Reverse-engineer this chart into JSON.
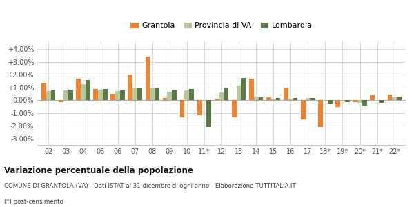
{
  "categories": [
    "02",
    "03",
    "04",
    "05",
    "06",
    "07",
    "08",
    "09",
    "10",
    "11*",
    "12",
    "13",
    "14",
    "15",
    "16",
    "17",
    "18*",
    "19*",
    "20*",
    "21*",
    "22*"
  ],
  "grantola": [
    0.0135,
    -0.0015,
    0.017,
    0.009,
    0.005,
    0.02,
    0.034,
    0.0015,
    -0.0135,
    -0.012,
    0.001,
    -0.0135,
    0.017,
    0.002,
    0.01,
    -0.015,
    -0.021,
    -0.0055,
    -0.0015,
    0.004,
    0.0045
  ],
  "provincia_va": [
    0.007,
    0.0075,
    0.0125,
    0.0075,
    0.007,
    0.01,
    0.01,
    0.0065,
    0.0075,
    -0.001,
    0.006,
    0.0115,
    0.003,
    0.0005,
    0.001,
    0.0015,
    -0.001,
    -0.001,
    -0.0025,
    -0.0005,
    0.0025
  ],
  "lombardia": [
    0.0075,
    0.008,
    0.0155,
    0.0085,
    0.0075,
    0.0095,
    0.01,
    0.008,
    0.0085,
    -0.021,
    0.01,
    0.0175,
    0.0025,
    0.0015,
    0.0015,
    0.0015,
    -0.003,
    -0.0015,
    -0.004,
    -0.002,
    0.003
  ],
  "color_grantola": "#f0822d",
  "color_provincia": "#b5c99a",
  "color_lombardia": "#5a7a4a",
  "title": "Variazione percentuale della popolazione",
  "subtitle": "COMUNE DI GRANTOLA (VA) - Dati ISTAT al 31 dicembre di ogni anno - Elaborazione TUTTITALIA.IT",
  "footnote": "(*) post-censimento",
  "ylim": [
    -0.035,
    0.046
  ],
  "yticks": [
    -0.03,
    -0.02,
    -0.01,
    0.0,
    0.01,
    0.02,
    0.03,
    0.04
  ],
  "ytick_labels": [
    "-3.00%",
    "-2.00%",
    "-1.00%",
    "0.00%",
    "+1.00%",
    "+2.00%",
    "+3.00%",
    "+4.00%"
  ]
}
